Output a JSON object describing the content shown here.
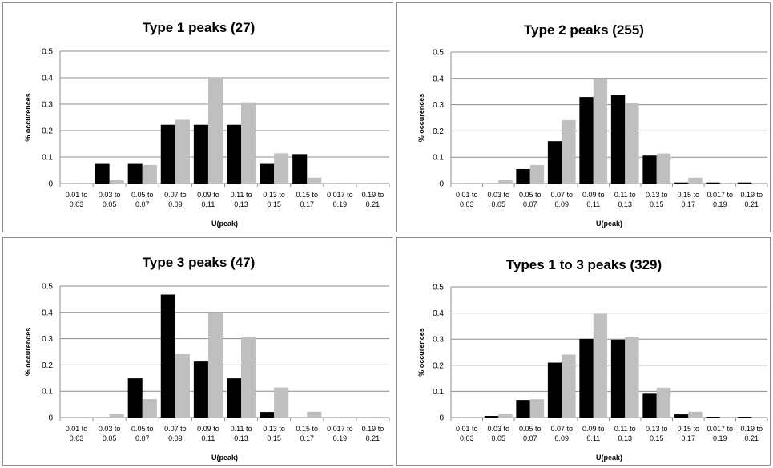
{
  "chart_data": [
    {
      "type": "bar",
      "title": "Type 1 peaks (27)",
      "xlabel": "U(peak)",
      "ylabel": "% occurences",
      "ylim": [
        0,
        0.5
      ],
      "yticks": [
        "0",
        "0.1",
        "0.2",
        "0.3",
        "0.4",
        "0.5"
      ],
      "grid": true,
      "categories": [
        [
          "0.01 to",
          "0.03"
        ],
        [
          "0.03 to",
          "0.05"
        ],
        [
          "0.05 to",
          "0.07"
        ],
        [
          "0.07 to",
          "0.09"
        ],
        [
          "0.09 to",
          "0.11"
        ],
        [
          "0.11 to",
          "0.13"
        ],
        [
          "0.13 to",
          "0.15"
        ],
        [
          "0.15 to",
          "0.17"
        ],
        [
          "0.017 to",
          "0.19"
        ],
        [
          "0.19 to",
          "0.21"
        ]
      ],
      "series": [
        {
          "color": "#000000",
          "values": [
            0,
            0.074,
            0.074,
            0.222,
            0.222,
            0.222,
            0.074,
            0.111,
            0,
            0
          ]
        },
        {
          "color": "#bfbfbf",
          "values": [
            0.003,
            0.012,
            0.07,
            0.241,
            0.397,
            0.307,
            0.114,
            0.022,
            0.003,
            0.003
          ]
        }
      ]
    },
    {
      "type": "bar",
      "title": "Type 2 peaks (255)",
      "xlabel": "U(peak)",
      "ylabel": "% occurences",
      "ylim": [
        0,
        0.5
      ],
      "yticks": [
        "0",
        "0.1",
        "0.2",
        "0.3",
        "0.4",
        "0.5"
      ],
      "grid": true,
      "categories": [
        [
          "0.01 to",
          "0.03"
        ],
        [
          "0.03 to",
          "0.05"
        ],
        [
          "0.05 to",
          "0.07"
        ],
        [
          "0.07 to",
          "0.09"
        ],
        [
          "0.09 to",
          "0.11"
        ],
        [
          "0.11 to",
          "0.13"
        ],
        [
          "0.13 to",
          "0.15"
        ],
        [
          "0.15 to",
          "0.17"
        ],
        [
          "0.017 to",
          "0.19"
        ],
        [
          "0.19 to",
          "0.21"
        ]
      ],
      "series": [
        {
          "color": "#000000",
          "values": [
            0,
            0,
            0.055,
            0.161,
            0.329,
            0.337,
            0.106,
            0.004,
            0.004,
            0.004
          ]
        },
        {
          "color": "#bfbfbf",
          "values": [
            0.003,
            0.012,
            0.07,
            0.241,
            0.397,
            0.307,
            0.114,
            0.022,
            0.003,
            0.003
          ]
        }
      ]
    },
    {
      "type": "bar",
      "title": "Type 3 peaks (47)",
      "xlabel": "U(peak)",
      "ylabel": "% occurences",
      "ylim": [
        0,
        0.5
      ],
      "yticks": [
        "0",
        "0.1",
        "0.2",
        "0.3",
        "0.4",
        "0.5"
      ],
      "grid": true,
      "categories": [
        [
          "0.01 to",
          "0.03"
        ],
        [
          "0.03 to",
          "0.05"
        ],
        [
          "0.05 to",
          "0.07"
        ],
        [
          "0.07 to",
          "0.09"
        ],
        [
          "0.09 to",
          "0.11"
        ],
        [
          "0.11 to",
          "0.13"
        ],
        [
          "0.13 to",
          "0.15"
        ],
        [
          "0.15 to",
          "0.17"
        ],
        [
          "0.017 to",
          "0.19"
        ],
        [
          "0.19 to",
          "0.21"
        ]
      ],
      "series": [
        {
          "color": "#000000",
          "values": [
            0,
            0,
            0.149,
            0.468,
            0.213,
            0.149,
            0.021,
            0,
            0,
            0
          ]
        },
        {
          "color": "#bfbfbf",
          "values": [
            0.003,
            0.012,
            0.07,
            0.241,
            0.397,
            0.307,
            0.114,
            0.022,
            0.003,
            0.003
          ]
        }
      ]
    },
    {
      "type": "bar",
      "title": "Types 1 to 3 peaks (329)",
      "xlabel": "U(peak)",
      "ylabel": "% occurences",
      "ylim": [
        0,
        0.5
      ],
      "yticks": [
        "0",
        "0.1",
        "0.2",
        "0.3",
        "0.4",
        "0.5"
      ],
      "grid": true,
      "categories": [
        [
          "0.01 to",
          "0.03"
        ],
        [
          "0.03 to",
          "0.05"
        ],
        [
          "0.05 to",
          "0.07"
        ],
        [
          "0.07 to",
          "0.09"
        ],
        [
          "0.09 to",
          "0.11"
        ],
        [
          "0.11 to",
          "0.13"
        ],
        [
          "0.13 to",
          "0.15"
        ],
        [
          "0.15 to",
          "0.17"
        ],
        [
          "0.017 to",
          "0.19"
        ],
        [
          "0.19 to",
          "0.21"
        ]
      ],
      "series": [
        {
          "color": "#000000",
          "values": [
            0,
            0.006,
            0.067,
            0.21,
            0.301,
            0.298,
            0.091,
            0.012,
            0.003,
            0.003
          ]
        },
        {
          "color": "#bfbfbf",
          "values": [
            0.003,
            0.012,
            0.07,
            0.241,
            0.397,
            0.307,
            0.114,
            0.022,
            0.003,
            0.003
          ]
        }
      ]
    }
  ]
}
